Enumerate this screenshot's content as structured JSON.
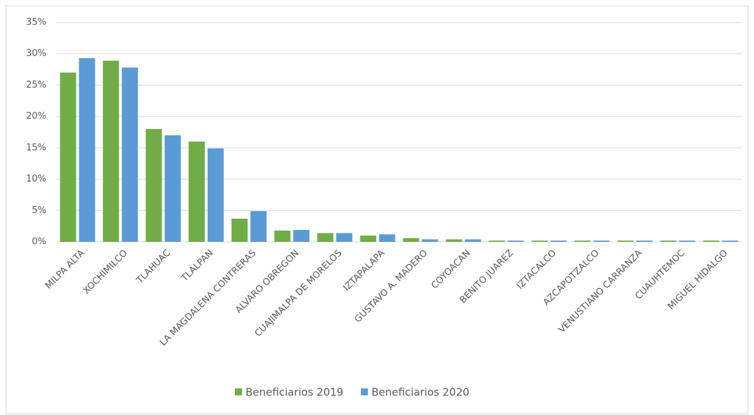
{
  "chart_data": {
    "type": "bar",
    "categories": [
      "MILPA ALTA",
      "XOCHIMILCO",
      "TLAHUAC",
      "TLALPAN",
      "LA MAGDALENA CONTRERAS",
      "ALVARO OBREGON",
      "CUAJIMALPA DE MORELOS",
      "IZTAPALAPA",
      "GUSTAVO A. MADERO",
      "COYOACAN",
      "BENITO JUAREZ",
      "IZTACALCO",
      "AZCAPOTZALCO",
      "VENUSTIANO CARRANZA",
      "CUAUHTEMOC",
      "MIGUEL HIDALGO"
    ],
    "series": [
      {
        "name": "Beneficiarios 2019",
        "color": "#70ad47",
        "values": [
          27,
          28.9,
          18,
          16,
          3.7,
          1.8,
          1.4,
          1.0,
          0.6,
          0.4,
          0.2,
          0.2,
          0.2,
          0.2,
          0.2,
          0.2
        ]
      },
      {
        "name": "Beneficiarios 2020",
        "color": "#5b9bd5",
        "values": [
          29.3,
          27.8,
          17,
          14.9,
          4.9,
          1.9,
          1.4,
          1.2,
          0.4,
          0.4,
          0.2,
          0.2,
          0.2,
          0.2,
          0.2,
          0.2
        ]
      }
    ],
    "ylim": [
      0,
      35
    ],
    "yticks": [
      {
        "value": 0,
        "label": "0%"
      },
      {
        "value": 5,
        "label": "5%"
      },
      {
        "value": 10,
        "label": "10%"
      },
      {
        "value": 15,
        "label": "15%"
      },
      {
        "value": 20,
        "label": "20%"
      },
      {
        "value": 25,
        "label": "25%"
      },
      {
        "value": 30,
        "label": "30%"
      },
      {
        "value": 35,
        "label": "35%"
      }
    ],
    "grid": true,
    "legend": "bottom"
  }
}
